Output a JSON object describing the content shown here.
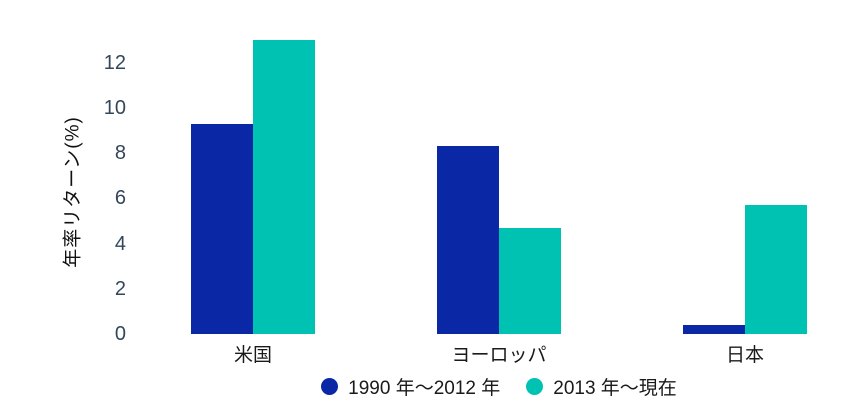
{
  "chart_data": {
    "type": "bar",
    "title": "",
    "ylabel": "年率リターン(%)",
    "xlabel": "",
    "categories": [
      "米国",
      "ヨーロッパ",
      "日本"
    ],
    "series": [
      {
        "name": "1990 年〜2012 年",
        "color": "#0a28a5",
        "values": [
          9.3,
          8.3,
          0.4
        ]
      },
      {
        "name": "2013 年〜現在",
        "color": "#00c2b2",
        "values": [
          13.0,
          4.7,
          5.7
        ]
      }
    ],
    "yticks": [
      0,
      2,
      4,
      6,
      8,
      10,
      12
    ],
    "ylim": [
      0,
      13.5
    ],
    "grid": false,
    "legend_position": "bottom-center",
    "colors": {
      "tick_label": "#33465a",
      "axis_label": "#111111",
      "category_label": "#1a1a1a",
      "legend_label": "#1a1a1a",
      "background": "#ffffff"
    }
  }
}
